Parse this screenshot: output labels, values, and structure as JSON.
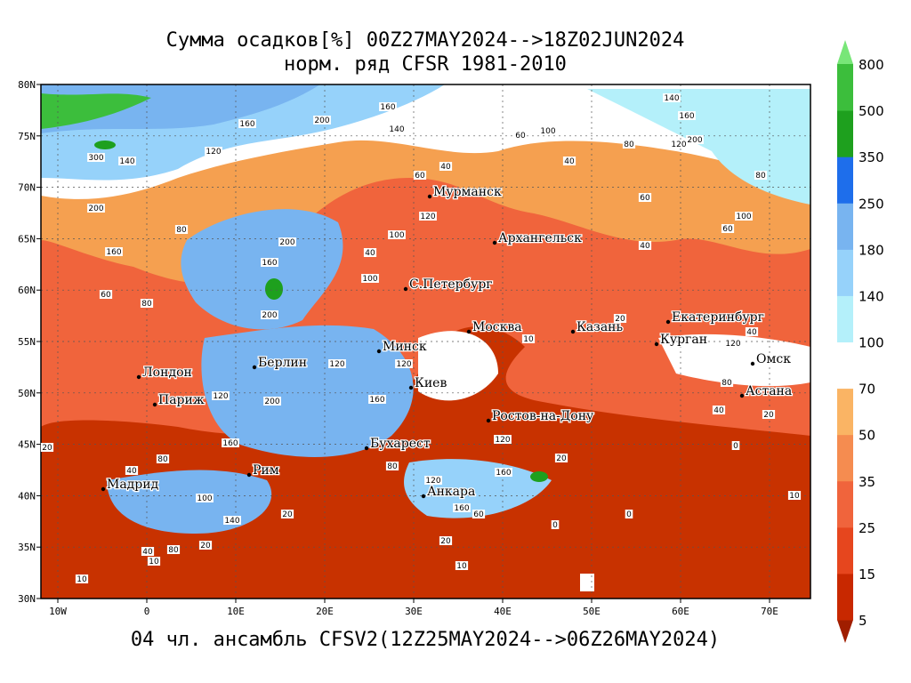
{
  "title": [
    "Сумма осадков[%] 00Z27MAY2024-->18Z02JUN2024",
    "норм. ряд CFSR 1981-2010"
  ],
  "footer": "04 чл. ансамбль CFSV2(12Z25MAY2024-->06Z26MAY2024)",
  "map": {
    "lonlim": [
      -11.9,
      74.6
    ],
    "latlim": [
      30,
      80
    ],
    "lonticks": [
      {
        "value": -10,
        "label": "10W"
      },
      0,
      {
        "value": 10,
        "label": "10E"
      },
      {
        "value": 20,
        "label": "20E"
      },
      {
        "value": 30,
        "label": "30E"
      },
      {
        "value": 40,
        "label": "40E"
      },
      {
        "value": 50,
        "label": "50E"
      },
      {
        "value": 60,
        "label": "60E"
      },
      {
        "value": 70,
        "label": "70E"
      }
    ],
    "latticks": [
      {
        "value": 80,
        "label": "80N"
      },
      {
        "value": 75,
        "label": "75N"
      },
      {
        "value": 70,
        "label": "70N"
      },
      {
        "value": 65,
        "label": "65N"
      },
      {
        "value": 60,
        "label": "60N"
      },
      {
        "value": 55,
        "label": "55N"
      },
      {
        "value": 50,
        "label": "50N"
      },
      {
        "value": 45,
        "label": "45N"
      },
      {
        "value": 40,
        "label": "40N"
      },
      {
        "value": 35,
        "label": "35N"
      },
      {
        "value": 30,
        "label": "30N"
      }
    ]
  },
  "cities": [
    "Мурманск",
    "Архангельск",
    "С.Петербург",
    "Москва",
    "Казань",
    "Екатеринбург",
    "Курган",
    "Омск",
    "Астана",
    "Минск",
    "Берлин",
    "Киев",
    "Лондон",
    "Париж",
    "Ростов-на-Дону",
    "Бухарест",
    "Рим",
    "Мадрид",
    "Анкара"
  ],
  "contour_labels": [
    "300",
    "200",
    "160",
    "140",
    "120",
    "80",
    "200",
    "160",
    "160",
    "140",
    "140",
    "160",
    "60",
    "100",
    "40",
    "200",
    "80",
    "120",
    "80",
    "40",
    "60",
    "60",
    "100",
    "60",
    "40",
    "120",
    "100",
    "40",
    "200",
    "160",
    "60",
    "80",
    "200",
    "100",
    "20",
    "10",
    "40",
    "120",
    "80",
    "40",
    "20",
    "0",
    "120",
    "120",
    "160",
    "200",
    "120",
    "160",
    "20",
    "80",
    "40",
    "100",
    "140",
    "20",
    "80",
    "40",
    "20",
    "10",
    "10",
    "120",
    "160",
    "160",
    "60",
    "20",
    "10",
    "0",
    "0",
    "10",
    "20",
    "80",
    "120"
  ],
  "colorbar": {
    "levels": [
      5,
      15,
      25,
      35,
      50,
      70,
      100,
      140,
      180,
      250,
      350,
      500,
      800
    ],
    "colors": [
      "#a01e00",
      "#c82800",
      "#e6461e",
      "#f0643c",
      "#f58c50",
      "#fab464",
      "#ffffff",
      "#b4f0fa",
      "#96d2fa",
      "#78b4f0",
      "#1e6eeb",
      "#1ea01e",
      "#3cbe3c",
      "#78e678"
    ]
  }
}
